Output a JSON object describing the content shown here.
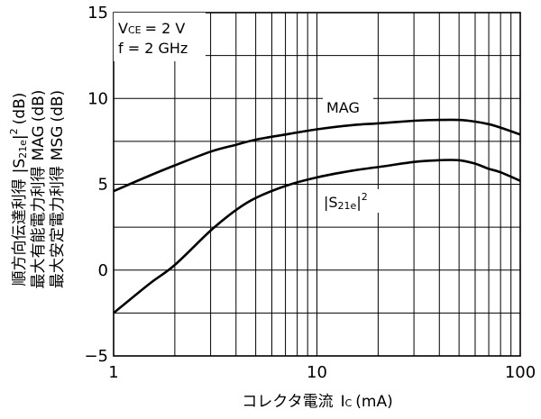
{
  "chart_data": {
    "type": "line",
    "xscale": "log",
    "xlim": [
      1,
      100
    ],
    "ylim": [
      -5,
      15
    ],
    "grid": true,
    "x_ticks": [
      {
        "value": 1,
        "label": "1"
      },
      {
        "value": 10,
        "label": "10"
      },
      {
        "value": 100,
        "label": "100"
      }
    ],
    "y_ticks": [
      {
        "value": -5,
        "label": "−5"
      },
      {
        "value": 0,
        "label": "0"
      },
      {
        "value": 5,
        "label": "5"
      },
      {
        "value": 10,
        "label": "10"
      },
      {
        "value": 15,
        "label": "15"
      }
    ],
    "xlabel": {
      "text": "コレクタ電流",
      "var_main": "I",
      "var_sub": "C",
      "unit": "(mA)"
    },
    "ylabel_lines": [
      {
        "text": "順方向伝達利得",
        "abs_pre": "|S",
        "abs_sub": "21e",
        "abs_post": "|",
        "abs_sup": "2",
        "unit": "(dB)"
      },
      {
        "text": "最大有能電力利得",
        "abbr": "MAG",
        "unit": "(dB)"
      },
      {
        "text": "最大安定電力利得",
        "abbr": "MSG",
        "unit": "(dB)"
      }
    ],
    "conditions": {
      "vce": {
        "main": "V",
        "sub": "CE",
        "rest": "= 2 V"
      },
      "freq": "f = 2 GHz"
    },
    "series": [
      {
        "name": "MAG",
        "x": [
          1,
          1.5,
          2,
          3,
          4,
          5,
          7,
          10,
          15,
          20,
          30,
          40,
          50,
          60,
          70,
          80,
          100
        ],
        "y": [
          4.6,
          5.5,
          6.1,
          6.9,
          7.3,
          7.6,
          7.9,
          8.2,
          8.45,
          8.55,
          8.7,
          8.75,
          8.75,
          8.65,
          8.5,
          8.3,
          7.9
        ]
      },
      {
        "name": {
          "pre": "|S",
          "sub": "21e",
          "post": "|",
          "sup": "2"
        },
        "x": [
          1,
          1.5,
          2,
          3,
          4,
          5,
          7,
          10,
          15,
          20,
          30,
          40,
          50,
          60,
          70,
          80,
          100
        ],
        "y": [
          -2.5,
          -0.8,
          0.3,
          2.3,
          3.5,
          4.2,
          4.9,
          5.4,
          5.8,
          6.0,
          6.3,
          6.4,
          6.4,
          6.2,
          5.9,
          5.7,
          5.2
        ]
      }
    ]
  }
}
